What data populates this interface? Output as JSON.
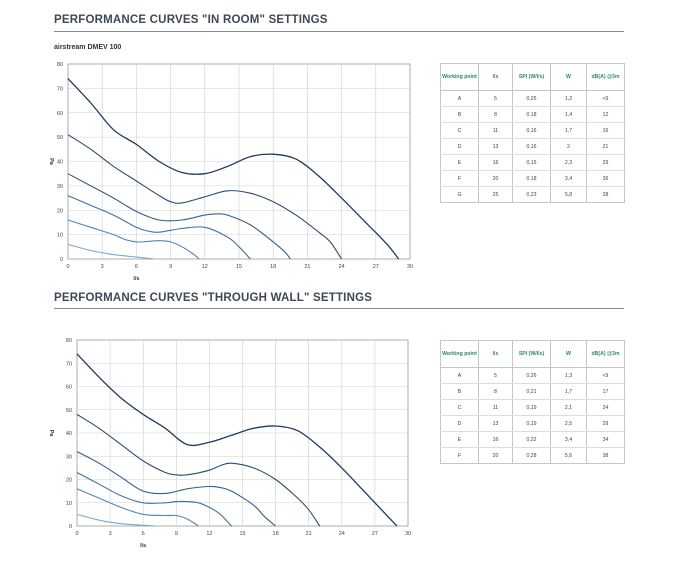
{
  "sections": [
    {
      "title": "PERFORMANCE CURVES \"IN ROOM\" SETTINGS",
      "model": "airstream DMEV 100",
      "table": {
        "headers": [
          "Working point",
          "l/s",
          "SPI (W/l/s)",
          "W",
          "dB(A) @3m"
        ],
        "rows": [
          [
            "A",
            "5",
            "0,25",
            "1,2",
            "<9"
          ],
          [
            "B",
            "8",
            "0,18",
            "1,4",
            "12"
          ],
          [
            "C",
            "11",
            "0,16",
            "1,7",
            "16"
          ],
          [
            "D",
            "13",
            "0,16",
            "2",
            "21"
          ],
          [
            "E",
            "16",
            "0,15",
            "2,3",
            "29"
          ],
          [
            "F",
            "20",
            "0,18",
            "3,4",
            "36"
          ],
          [
            "G",
            "25",
            "0,23",
            "5,8",
            "38"
          ]
        ]
      }
    },
    {
      "title": "PERFORMANCE CURVES \"THROUGH WALL\" SETTINGS",
      "model": "",
      "table": {
        "headers": [
          "Working point",
          "l/s",
          "SPI (W/l/s)",
          "W",
          "dB(A) @3m"
        ],
        "rows": [
          [
            "A",
            "5",
            "0,26",
            "1,3",
            "<9"
          ],
          [
            "B",
            "8",
            "0,21",
            "1,7",
            "17"
          ],
          [
            "C",
            "11",
            "0,19",
            "2,1",
            "24"
          ],
          [
            "D",
            "13",
            "0,19",
            "2,5",
            "29"
          ],
          [
            "E",
            "16",
            "0,22",
            "3,4",
            "34"
          ],
          [
            "F",
            "20",
            "0,28",
            "5,6",
            "38"
          ]
        ]
      }
    }
  ],
  "chart_data": [
    {
      "type": "line",
      "title": "",
      "xlabel": "l/s",
      "ylabel": "Pa",
      "xlim": [
        0,
        30
      ],
      "ylim": [
        0,
        80
      ],
      "xticks": [
        0,
        3,
        6,
        9,
        12,
        15,
        18,
        21,
        24,
        27,
        30
      ],
      "yticks": [
        0,
        10,
        20,
        30,
        40,
        50,
        60,
        70,
        80
      ],
      "grid": true,
      "series_colors": [
        "#1f3a5c",
        "#2a4d74",
        "#345f8a",
        "#3f72a0",
        "#4f86b6",
        "#7aa6cf"
      ],
      "series": [
        {
          "points": [
            [
              0,
              74
            ],
            [
              2,
              64
            ],
            [
              4,
              53
            ],
            [
              6,
              47
            ],
            [
              8,
              40
            ],
            [
              10,
              35.5
            ],
            [
              12,
              35
            ],
            [
              14,
              38
            ],
            [
              16,
              42
            ],
            [
              18,
              43
            ],
            [
              20,
              41
            ],
            [
              22,
              34
            ],
            [
              24,
              25
            ],
            [
              26,
              15.5
            ],
            [
              28,
              6
            ],
            [
              29,
              0
            ]
          ]
        },
        {
          "points": [
            [
              0,
              51
            ],
            [
              2,
              45
            ],
            [
              4,
              38
            ],
            [
              6,
              32
            ],
            [
              8,
              26
            ],
            [
              9,
              23.5
            ],
            [
              10,
              23
            ],
            [
              12,
              25.5
            ],
            [
              14,
              28
            ],
            [
              16,
              27
            ],
            [
              18,
              23.5
            ],
            [
              20,
              18
            ],
            [
              22,
              11
            ],
            [
              23,
              7
            ],
            [
              24,
              0
            ]
          ]
        },
        {
          "points": [
            [
              0,
              35
            ],
            [
              2,
              30
            ],
            [
              4,
              25
            ],
            [
              6,
              19.5
            ],
            [
              8,
              16
            ],
            [
              10,
              16
            ],
            [
              12,
              18
            ],
            [
              13,
              18.5
            ],
            [
              14,
              18
            ],
            [
              16,
              14
            ],
            [
              18,
              7
            ],
            [
              19,
              3
            ],
            [
              19.5,
              0
            ]
          ]
        },
        {
          "points": [
            [
              0,
              26
            ],
            [
              2,
              22
            ],
            [
              4,
              18
            ],
            [
              6,
              13
            ],
            [
              7,
              11.5
            ],
            [
              8,
              11
            ],
            [
              10,
              12.5
            ],
            [
              12,
              13
            ],
            [
              14,
              9
            ],
            [
              15,
              5
            ],
            [
              16,
              0
            ]
          ]
        },
        {
          "points": [
            [
              0,
              16
            ],
            [
              2,
              13
            ],
            [
              4,
              10
            ],
            [
              5,
              8
            ],
            [
              6,
              7
            ],
            [
              7,
              7.2
            ],
            [
              8,
              7.5
            ],
            [
              9,
              7
            ],
            [
              10,
              5
            ],
            [
              11,
              2
            ],
            [
              11.5,
              0
            ]
          ]
        },
        {
          "points": [
            [
              0,
              6
            ],
            [
              2,
              3.5
            ],
            [
              4,
              1.8
            ],
            [
              6,
              0.8
            ],
            [
              7,
              0.3
            ],
            [
              7.5,
              0
            ]
          ]
        }
      ]
    },
    {
      "type": "line",
      "title": "",
      "xlabel": "l/s",
      "ylabel": "Pa",
      "xlim": [
        0,
        30
      ],
      "ylim": [
        0,
        80
      ],
      "xticks": [
        0,
        3,
        6,
        9,
        12,
        15,
        18,
        21,
        24,
        27,
        30
      ],
      "yticks": [
        0,
        10,
        20,
        30,
        40,
        50,
        60,
        70,
        80
      ],
      "grid": true,
      "series_colors": [
        "#1f3a5c",
        "#2a4d74",
        "#345f8a",
        "#3f72a0",
        "#4f86b6",
        "#7aa6cf"
      ],
      "series": [
        {
          "points": [
            [
              0,
              74
            ],
            [
              2,
              64
            ],
            [
              4,
              55
            ],
            [
              6,
              48
            ],
            [
              8,
              42
            ],
            [
              10,
              35
            ],
            [
              12,
              36
            ],
            [
              14,
              39
            ],
            [
              16,
              42
            ],
            [
              18,
              43
            ],
            [
              20,
              41
            ],
            [
              22,
              34
            ],
            [
              24,
              25
            ],
            [
              26,
              15
            ],
            [
              28,
              5
            ],
            [
              29,
              0
            ]
          ]
        },
        {
          "points": [
            [
              0,
              48
            ],
            [
              2,
              42
            ],
            [
              4,
              35
            ],
            [
              6,
              28
            ],
            [
              8,
              23
            ],
            [
              9,
              22
            ],
            [
              10,
              22
            ],
            [
              12,
              24
            ],
            [
              13,
              26
            ],
            [
              14,
              27
            ],
            [
              16,
              25
            ],
            [
              18,
              20
            ],
            [
              20,
              12
            ],
            [
              21,
              7
            ],
            [
              22,
              0
            ]
          ]
        },
        {
          "points": [
            [
              0,
              32
            ],
            [
              2,
              27
            ],
            [
              4,
              21
            ],
            [
              6,
              15
            ],
            [
              8,
              14
            ],
            [
              10,
              16
            ],
            [
              12,
              17
            ],
            [
              13,
              16.5
            ],
            [
              14,
              15
            ],
            [
              16,
              9
            ],
            [
              17,
              4
            ],
            [
              18,
              0
            ]
          ]
        },
        {
          "points": [
            [
              0,
              23
            ],
            [
              2,
              18
            ],
            [
              4,
              13
            ],
            [
              6,
              10
            ],
            [
              8,
              10
            ],
            [
              9,
              10.5
            ],
            [
              10,
              10.5
            ],
            [
              11,
              10
            ],
            [
              12,
              8
            ],
            [
              13,
              5
            ],
            [
              14,
              0
            ]
          ]
        },
        {
          "points": [
            [
              0,
              16
            ],
            [
              2,
              12
            ],
            [
              4,
              8
            ],
            [
              6,
              5
            ],
            [
              8,
              4.5
            ],
            [
              9,
              4.5
            ],
            [
              10,
              3
            ],
            [
              11,
              0
            ]
          ]
        },
        {
          "points": [
            [
              0,
              5
            ],
            [
              2,
              2.5
            ],
            [
              4,
              1
            ],
            [
              6,
              0.3
            ],
            [
              7,
              0
            ]
          ]
        }
      ]
    }
  ]
}
